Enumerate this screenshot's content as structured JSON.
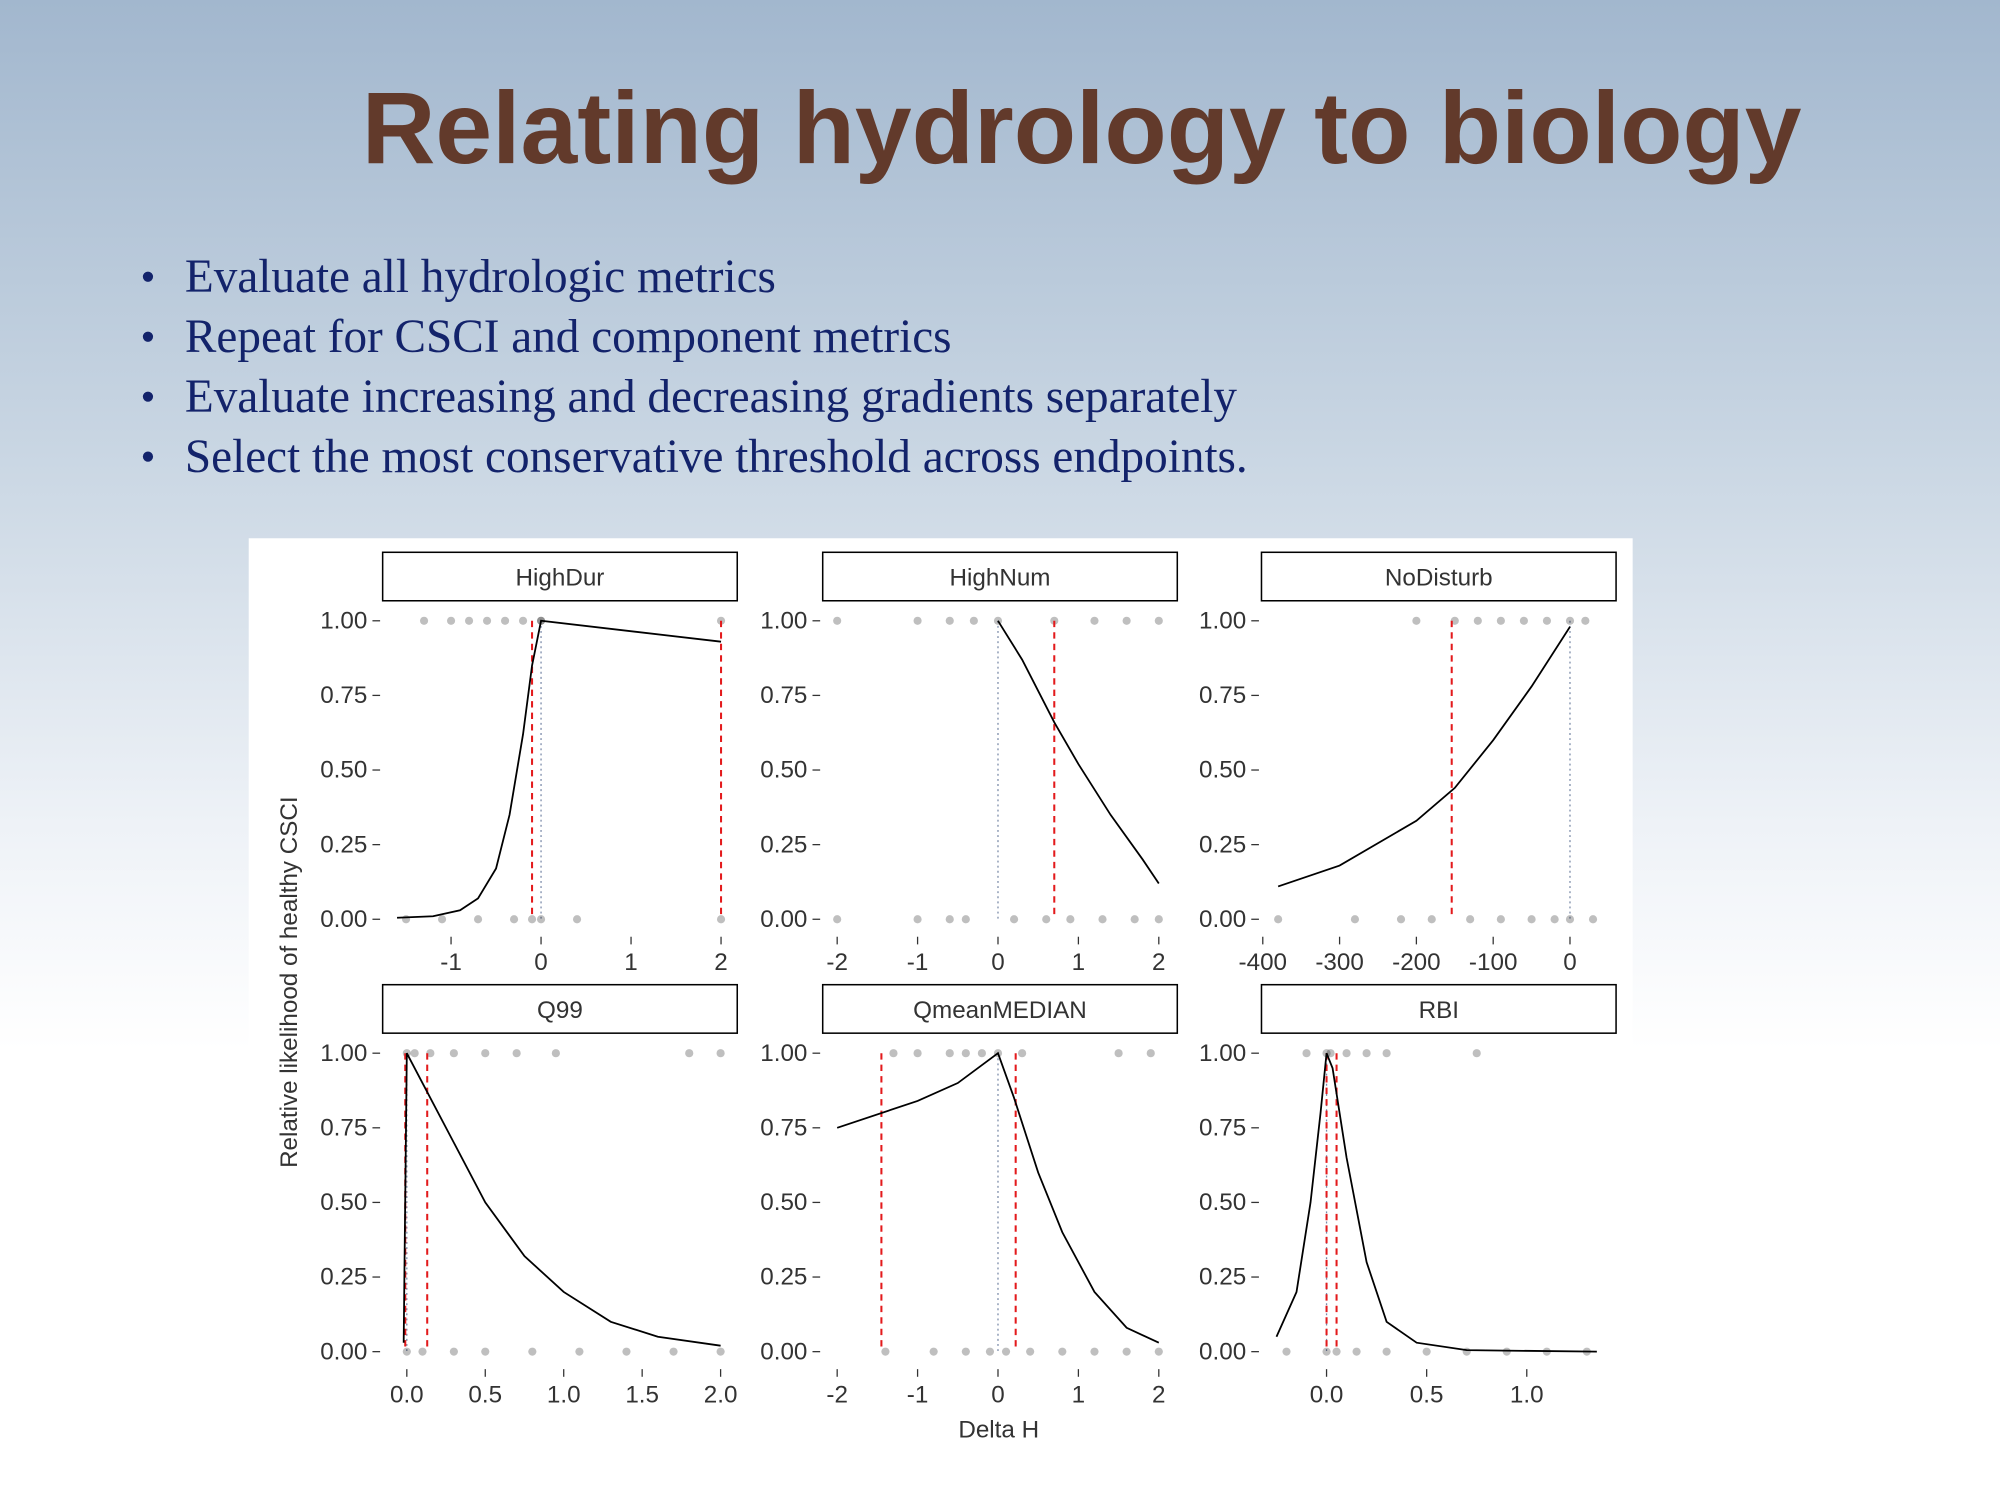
{
  "title": "Relating hydrology to biology",
  "bullets": [
    "Evaluate all hydrologic metrics",
    "Repeat for CSCI and component metrics",
    "Evaluate increasing and decreasing gradients separately",
    "Select the most conservative threshold across endpoints."
  ],
  "xlabel": "Delta H",
  "ylabel": "Relative likelihood of healthy CSCI",
  "chart_data": [
    {
      "type": "line",
      "title": "HighDur",
      "xlim": [
        -1.76,
        2.18
      ],
      "xticks": [
        -1,
        0,
        1,
        2
      ],
      "ylim": [
        -0.05,
        1.05
      ],
      "yticks": [
        {
          "value": 0,
          "label": "0.00"
        },
        {
          "value": 0.25,
          "label": "0.25"
        },
        {
          "value": 0.5,
          "label": "0.50"
        },
        {
          "value": 0.75,
          "label": "0.75"
        },
        {
          "value": 1,
          "label": "1.00"
        }
      ],
      "color": "#000000",
      "threshold_color": "#e31a1c",
      "x": [
        -1.6,
        -1.2,
        -0.9,
        -0.7,
        -0.5,
        -0.35,
        -0.2,
        -0.1,
        0,
        2
      ],
      "values": [
        0.005,
        0.01,
        0.03,
        0.07,
        0.17,
        0.35,
        0.62,
        0.85,
        1.0,
        0.93
      ],
      "thresholds": [
        -0.1,
        2.0
      ],
      "reference": 0,
      "points": {
        "x": [
          -1.3,
          -1.0,
          -0.8,
          -0.6,
          -0.4,
          -0.2,
          0,
          0,
          2.0,
          -1.5,
          -1.1,
          -0.7,
          -0.3,
          -0.1,
          0,
          0.4,
          2.0
        ],
        "values": [
          1,
          1,
          1,
          1,
          1,
          1,
          1,
          1,
          1,
          0,
          0,
          0,
          0,
          0,
          0,
          0,
          0
        ]
      }
    },
    {
      "type": "line",
      "title": "HighNum",
      "xlim": [
        -2.18,
        2.23
      ],
      "xticks": [
        -2,
        -1,
        0,
        1,
        2
      ],
      "ylim": [
        -0.05,
        1.05
      ],
      "yticks": [
        {
          "value": 0,
          "label": "0.00"
        },
        {
          "value": 0.25,
          "label": "0.25"
        },
        {
          "value": 0.5,
          "label": "0.50"
        },
        {
          "value": 0.75,
          "label": "0.75"
        },
        {
          "value": 1,
          "label": "1.00"
        }
      ],
      "color": "#000000",
      "threshold_color": "#e31a1c",
      "x": [
        0,
        0.3,
        0.7,
        1.0,
        1.4,
        1.8,
        2.0
      ],
      "values": [
        1.0,
        0.87,
        0.66,
        0.52,
        0.35,
        0.2,
        0.12
      ],
      "thresholds": [
        0.7
      ],
      "reference": 0,
      "points": {
        "x": [
          -2,
          -1.0,
          -0.6,
          -0.3,
          0,
          0.7,
          1.2,
          1.6,
          2,
          -2,
          -1,
          -0.6,
          -0.4,
          0.2,
          0.6,
          0.9,
          1.3,
          1.7,
          2
        ],
        "values": [
          1,
          1,
          1,
          1,
          1,
          1,
          1,
          1,
          1,
          0,
          0,
          0,
          0,
          0,
          0,
          0,
          0,
          0,
          0
        ]
      }
    },
    {
      "type": "line",
      "title": "NoDisturb",
      "xlim": [
        -401.7,
        60
      ],
      "xticks": [
        -400,
        -300,
        -200,
        -100,
        0
      ],
      "ylim": [
        -0.05,
        1.05
      ],
      "yticks": [
        {
          "value": 0,
          "label": "0.00"
        },
        {
          "value": 0.25,
          "label": "0.25"
        },
        {
          "value": 0.5,
          "label": "0.50"
        },
        {
          "value": 0.75,
          "label": "0.75"
        },
        {
          "value": 1,
          "label": "1.00"
        }
      ],
      "color": "#000000",
      "threshold_color": "#e31a1c",
      "x": [
        -380,
        -300,
        -200,
        -150,
        -100,
        -50,
        0
      ],
      "values": [
        0.11,
        0.18,
        0.33,
        0.44,
        0.6,
        0.78,
        0.98
      ],
      "thresholds": [
        -154
      ],
      "reference": 0,
      "points": {
        "x": [
          -200,
          -150,
          -120,
          -90,
          -60,
          -30,
          0,
          20,
          -380,
          -280,
          -220,
          -180,
          -130,
          -90,
          -50,
          -20,
          0,
          30
        ],
        "values": [
          1,
          1,
          1,
          1,
          1,
          1,
          1,
          1,
          0,
          0,
          0,
          0,
          0,
          0,
          0,
          0,
          0,
          0
        ]
      }
    },
    {
      "type": "line",
      "title": "Q99",
      "xlim": [
        -0.154,
        2.106
      ],
      "xticks": [
        {
          "value": 0,
          "label": "0.0"
        },
        {
          "value": 0.5,
          "label": "0.5"
        },
        {
          "value": 1,
          "label": "1.0"
        },
        {
          "value": 1.5,
          "label": "1.5"
        },
        {
          "value": 2,
          "label": "2.0"
        }
      ],
      "ylim": [
        -0.05,
        1.05
      ],
      "yticks": [
        {
          "value": 0,
          "label": "0.00"
        },
        {
          "value": 0.25,
          "label": "0.25"
        },
        {
          "value": 0.5,
          "label": "0.50"
        },
        {
          "value": 0.75,
          "label": "0.75"
        },
        {
          "value": 1,
          "label": "1.00"
        }
      ],
      "color": "#000000",
      "threshold_color": "#e31a1c",
      "x": [
        -0.02,
        0.0,
        0.1,
        0.3,
        0.5,
        0.75,
        1.0,
        1.3,
        1.6,
        2.0
      ],
      "values": [
        0.03,
        1.0,
        0.9,
        0.7,
        0.5,
        0.32,
        0.2,
        0.1,
        0.05,
        0.02
      ],
      "thresholds": [
        -0.01,
        0.13
      ],
      "reference": 0,
      "points": {
        "x": [
          0,
          0.05,
          0.15,
          0.3,
          0.5,
          0.7,
          0.95,
          1.8,
          2.0,
          0,
          0.1,
          0.3,
          0.5,
          0.8,
          1.1,
          1.4,
          1.7,
          2.0
        ],
        "values": [
          1,
          1,
          1,
          1,
          1,
          1,
          1,
          1,
          1,
          0,
          0,
          0,
          0,
          0,
          0,
          0,
          0,
          0
        ]
      }
    },
    {
      "type": "line",
      "title": "QmeanMEDIAN",
      "xlim": [
        -2.18,
        2.23
      ],
      "xticks": [
        -2,
        -1,
        0,
        1,
        2
      ],
      "ylim": [
        -0.05,
        1.05
      ],
      "yticks": [
        {
          "value": 0,
          "label": "0.00"
        },
        {
          "value": 0.25,
          "label": "0.25"
        },
        {
          "value": 0.5,
          "label": "0.50"
        },
        {
          "value": 0.75,
          "label": "0.75"
        },
        {
          "value": 1,
          "label": "1.00"
        }
      ],
      "color": "#000000",
      "threshold_color": "#e31a1c",
      "x": [
        -2,
        -1,
        -0.5,
        0,
        0.2,
        0.5,
        0.8,
        1.2,
        1.6,
        2
      ],
      "values": [
        0.75,
        0.84,
        0.9,
        1.0,
        0.85,
        0.6,
        0.4,
        0.2,
        0.08,
        0.03
      ],
      "thresholds": [
        -1.45,
        0.22
      ],
      "reference": 0,
      "points": {
        "x": [
          -1.3,
          -1.0,
          -0.6,
          -0.4,
          -0.2,
          0,
          0.3,
          1.5,
          1.9,
          -1.4,
          -0.8,
          -0.4,
          -0.1,
          0.1,
          0.4,
          0.8,
          1.2,
          1.6,
          2.0
        ],
        "values": [
          1,
          1,
          1,
          1,
          1,
          1,
          1,
          1,
          1,
          0,
          0,
          0,
          0,
          0,
          0,
          0,
          0,
          0,
          0
        ]
      }
    },
    {
      "type": "line",
      "title": "RBI",
      "xlim": [
        -0.325,
        1.446
      ],
      "xticks": [
        {
          "value": 0,
          "label": "0.0"
        },
        {
          "value": 0.5,
          "label": "0.5"
        },
        {
          "value": 1,
          "label": "1.0"
        }
      ],
      "ylim": [
        -0.05,
        1.05
      ],
      "yticks": [
        {
          "value": 0,
          "label": "0.00"
        },
        {
          "value": 0.25,
          "label": "0.25"
        },
        {
          "value": 0.5,
          "label": "0.50"
        },
        {
          "value": 0.75,
          "label": "0.75"
        },
        {
          "value": 1,
          "label": "1.00"
        }
      ],
      "color": "#000000",
      "threshold_color": "#e31a1c",
      "x": [
        -0.25,
        -0.15,
        -0.08,
        -0.03,
        0.0,
        0.03,
        0.1,
        0.2,
        0.3,
        0.45,
        0.7,
        1.35
      ],
      "values": [
        0.05,
        0.2,
        0.5,
        0.8,
        1.0,
        0.95,
        0.65,
        0.3,
        0.1,
        0.03,
        0.005,
        0.0
      ],
      "thresholds": [
        0.0,
        0.05
      ],
      "reference": 0,
      "points": {
        "x": [
          -0.1,
          0,
          0.02,
          0.1,
          0.2,
          0.3,
          0.75,
          -0.2,
          0,
          0.05,
          0.15,
          0.3,
          0.5,
          0.7,
          0.9,
          1.1,
          1.3
        ],
        "values": [
          1,
          1,
          1,
          1,
          1,
          1,
          1,
          0,
          0,
          0,
          0,
          0,
          0,
          0,
          0,
          0,
          0
        ]
      }
    }
  ]
}
